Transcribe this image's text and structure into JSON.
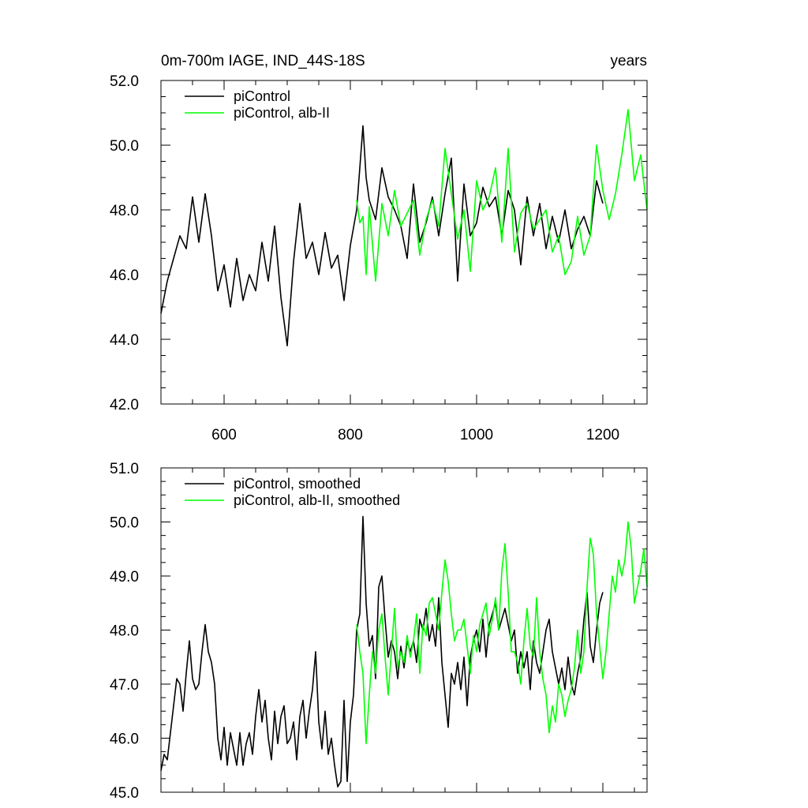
{
  "chart_data": [
    {
      "type": "line",
      "title_left": "0m-700m IAGE, IND_44S-18S",
      "title_right": "years",
      "xlim": [
        500,
        1270
      ],
      "ylim": [
        42.0,
        52.0
      ],
      "x_ticks": [
        600,
        800,
        1000,
        1200
      ],
      "x_tick_labels": [
        "600",
        "800",
        "1000",
        "1200"
      ],
      "y_ticks": [
        42.0,
        44.0,
        46.0,
        48.0,
        50.0,
        52.0
      ],
      "y_tick_labels": [
        "42.0",
        "44.0",
        "46.0",
        "48.0",
        "50.0",
        "52.0"
      ],
      "grid": false,
      "legend_position": "top-left",
      "series": [
        {
          "name": "piControl",
          "color": "#000000",
          "x": [
            500,
            510,
            520,
            530,
            540,
            550,
            560,
            570,
            580,
            590,
            600,
            610,
            620,
            630,
            640,
            650,
            660,
            670,
            680,
            690,
            700,
            710,
            720,
            730,
            740,
            750,
            760,
            770,
            780,
            790,
            800,
            810,
            820,
            825,
            830,
            840,
            850,
            860,
            870,
            880,
            890,
            900,
            910,
            920,
            930,
            940,
            950,
            960,
            970,
            980,
            990,
            1000,
            1010,
            1020,
            1030,
            1040,
            1050,
            1060,
            1070,
            1080,
            1090,
            1100,
            1110,
            1120,
            1130,
            1140,
            1150,
            1160,
            1170,
            1180,
            1190,
            1200
          ],
          "values": [
            44.8,
            45.8,
            46.5,
            47.2,
            46.8,
            48.4,
            47.0,
            48.5,
            47.2,
            45.5,
            46.3,
            45.0,
            46.5,
            45.2,
            46.0,
            45.5,
            47.0,
            45.8,
            47.5,
            45.3,
            43.8,
            46.4,
            48.2,
            46.5,
            47.0,
            46.0,
            47.3,
            46.2,
            46.6,
            45.2,
            46.9,
            48.0,
            50.6,
            49.0,
            48.3,
            47.7,
            49.3,
            48.4,
            48.0,
            47.5,
            46.5,
            48.8,
            47.0,
            47.6,
            48.4,
            47.2,
            48.5,
            49.6,
            45.8,
            48.8,
            47.2,
            47.6,
            48.7,
            48.1,
            48.4,
            47.2,
            48.6,
            48.0,
            46.3,
            48.4,
            47.2,
            48.2,
            46.8,
            47.8,
            47.0,
            48.0,
            46.8,
            47.4,
            47.8,
            47.2,
            48.9,
            48.2
          ]
        },
        {
          "name": "piControl, alb-II",
          "color": "#00ff00",
          "x": [
            810,
            815,
            820,
            825,
            830,
            840,
            850,
            860,
            870,
            880,
            890,
            900,
            910,
            920,
            930,
            940,
            950,
            960,
            970,
            980,
            990,
            1000,
            1010,
            1020,
            1030,
            1040,
            1050,
            1060,
            1070,
            1080,
            1090,
            1100,
            1110,
            1120,
            1130,
            1140,
            1150,
            1160,
            1170,
            1180,
            1190,
            1200,
            1210,
            1220,
            1230,
            1240,
            1250,
            1260,
            1270
          ],
          "values": [
            48.3,
            47.6,
            47.8,
            46.0,
            48.1,
            45.8,
            48.2,
            47.2,
            48.6,
            47.5,
            47.9,
            48.3,
            46.6,
            47.7,
            48.3,
            47.5,
            49.9,
            48.5,
            47.1,
            48.0,
            46.1,
            48.9,
            48.0,
            48.4,
            49.3,
            47.0,
            49.9,
            46.7,
            47.9,
            48.2,
            47.4,
            47.7,
            48.0,
            46.7,
            47.2,
            46.0,
            46.4,
            47.8,
            46.6,
            47.2,
            50.0,
            48.6,
            47.7,
            48.5,
            49.7,
            51.1,
            48.9,
            49.7,
            48.0
          ]
        }
      ]
    },
    {
      "type": "line",
      "title_left": "",
      "title_right": "",
      "xlim": [
        500,
        1270
      ],
      "ylim": [
        45.0,
        51.0
      ],
      "x_ticks": [
        600,
        800,
        1000,
        1200
      ],
      "x_tick_labels": [],
      "y_ticks": [
        45.0,
        46.0,
        47.0,
        48.0,
        49.0,
        50.0,
        51.0
      ],
      "y_tick_labels": [
        "45.0",
        "46.0",
        "47.0",
        "48.0",
        "49.0",
        "50.0",
        "51.0"
      ],
      "grid": false,
      "legend_position": "top-left",
      "series": [
        {
          "name": "piControl, smoothed",
          "color": "#000000",
          "x": [
            500,
            505,
            510,
            515,
            520,
            525,
            530,
            535,
            540,
            545,
            550,
            555,
            560,
            565,
            570,
            575,
            580,
            585,
            590,
            595,
            600,
            605,
            610,
            615,
            620,
            625,
            630,
            635,
            640,
            645,
            650,
            655,
            660,
            665,
            670,
            675,
            680,
            685,
            690,
            695,
            700,
            705,
            710,
            715,
            720,
            725,
            730,
            735,
            740,
            745,
            750,
            755,
            760,
            765,
            770,
            775,
            780,
            785,
            790,
            795,
            800,
            805,
            810,
            815,
            820,
            825,
            830,
            835,
            840,
            845,
            850,
            855,
            860,
            865,
            870,
            875,
            880,
            885,
            890,
            895,
            900,
            905,
            910,
            915,
            920,
            925,
            930,
            935,
            940,
            945,
            950,
            955,
            960,
            965,
            970,
            975,
            980,
            985,
            990,
            995,
            1000,
            1005,
            1010,
            1015,
            1020,
            1025,
            1030,
            1035,
            1040,
            1045,
            1050,
            1055,
            1060,
            1065,
            1070,
            1075,
            1080,
            1085,
            1090,
            1095,
            1100,
            1105,
            1110,
            1115,
            1120,
            1125,
            1130,
            1135,
            1140,
            1145,
            1150,
            1155,
            1160,
            1165,
            1170,
            1175,
            1180,
            1185,
            1190,
            1195,
            1200
          ],
          "values": [
            45.4,
            45.7,
            45.6,
            46.1,
            46.6,
            47.1,
            47.0,
            46.5,
            47.2,
            47.8,
            47.1,
            46.9,
            47.0,
            47.6,
            48.1,
            47.6,
            47.4,
            47.0,
            46.0,
            45.6,
            46.2,
            45.5,
            46.1,
            45.8,
            45.5,
            46.1,
            45.5,
            45.9,
            46.1,
            45.7,
            46.4,
            46.9,
            46.3,
            46.7,
            46.0,
            45.6,
            46.5,
            45.9,
            46.4,
            46.6,
            45.9,
            46.0,
            46.3,
            45.6,
            46.4,
            46.7,
            46.0,
            46.5,
            46.9,
            47.6,
            46.3,
            45.8,
            46.5,
            45.7,
            46.0,
            45.5,
            45.1,
            45.2,
            46.7,
            45.2,
            46.3,
            46.8,
            48.0,
            48.3,
            50.1,
            48.5,
            47.7,
            47.9,
            47.1,
            48.8,
            49.0,
            48.2,
            47.5,
            47.8,
            47.6,
            47.1,
            47.7,
            47.3,
            47.8,
            47.6,
            47.8,
            47.4,
            48.2,
            48.0,
            48.4,
            47.8,
            48.1,
            47.7,
            48.6,
            47.4,
            46.8,
            46.2,
            47.2,
            47.0,
            47.4,
            46.9,
            47.5,
            46.6,
            47.5,
            47.8,
            48.0,
            47.6,
            48.2,
            47.5,
            48.1,
            48.3,
            48.5,
            48.0,
            48.2,
            48.4,
            48.1,
            47.8,
            48.0,
            47.2,
            47.6,
            47.3,
            47.6,
            46.9,
            47.8,
            47.4,
            47.2,
            47.6,
            48.0,
            48.2,
            47.6,
            47.3,
            47.0,
            47.3,
            46.9,
            47.5,
            47.0,
            46.8,
            47.2,
            47.5,
            48.2,
            48.7,
            47.7,
            47.4,
            48.0,
            48.5,
            48.7
          ]
        },
        {
          "name": "piControl, alb-II, smoothed",
          "color": "#00ff00",
          "x": [
            810,
            815,
            820,
            825,
            830,
            835,
            840,
            845,
            850,
            855,
            860,
            865,
            870,
            875,
            880,
            885,
            890,
            895,
            900,
            905,
            910,
            915,
            920,
            925,
            930,
            935,
            940,
            945,
            950,
            955,
            960,
            965,
            970,
            975,
            980,
            985,
            990,
            995,
            1000,
            1005,
            1010,
            1015,
            1020,
            1025,
            1030,
            1035,
            1040,
            1045,
            1050,
            1055,
            1060,
            1065,
            1070,
            1075,
            1080,
            1085,
            1090,
            1095,
            1100,
            1105,
            1110,
            1115,
            1120,
            1125,
            1130,
            1135,
            1140,
            1145,
            1150,
            1155,
            1160,
            1165,
            1170,
            1175,
            1180,
            1185,
            1190,
            1195,
            1200,
            1205,
            1210,
            1215,
            1220,
            1225,
            1230,
            1235,
            1240,
            1245,
            1250,
            1255,
            1260,
            1265,
            1270
          ],
          "values": [
            48.1,
            47.6,
            47.2,
            45.9,
            46.8,
            47.6,
            47.2,
            48.0,
            48.3,
            47.5,
            46.8,
            47.6,
            48.4,
            47.3,
            47.6,
            47.4,
            47.9,
            47.5,
            47.8,
            48.3,
            47.2,
            48.1,
            47.9,
            48.5,
            48.6,
            48.3,
            48.0,
            48.7,
            49.3,
            48.9,
            48.3,
            47.8,
            48.0,
            48.0,
            48.2,
            47.7,
            47.2,
            47.9,
            47.6,
            48.1,
            48.3,
            48.5,
            47.9,
            48.2,
            48.6,
            48.0,
            49.1,
            49.6,
            48.7,
            47.6,
            47.6,
            47.4,
            47.0,
            47.8,
            48.4,
            47.7,
            47.5,
            48.6,
            47.6,
            47.1,
            46.8,
            46.1,
            46.6,
            46.3,
            47.0,
            46.8,
            46.4,
            46.7,
            46.9,
            47.3,
            48.0,
            47.2,
            47.6,
            48.8,
            49.7,
            49.4,
            48.3,
            47.7,
            47.1,
            47.6,
            48.3,
            49.0,
            48.7,
            49.3,
            49.0,
            49.3,
            50.0,
            49.5,
            48.5,
            48.8,
            49.1,
            49.5,
            48.8
          ]
        }
      ]
    }
  ]
}
